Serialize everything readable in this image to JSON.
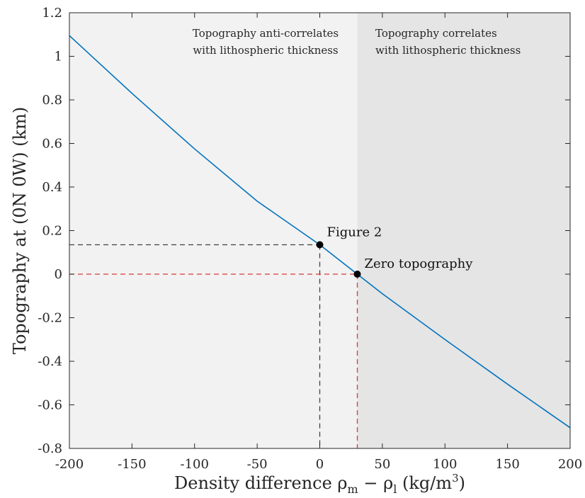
{
  "chart_data": {
    "type": "line",
    "xlabel": "Density difference ρ",
    "xlabel_sub1": "m",
    "xlabel_minus": " − ρ",
    "xlabel_sub2": "l",
    "xlabel_unit": " (kg/m",
    "xlabel_sup": "3",
    "xlabel_close": ")",
    "ylabel": "Topography at (0N 0W) (km)",
    "xlim": [
      -200,
      200
    ],
    "ylim": [
      -0.8,
      1.2
    ],
    "xticks": [
      -200,
      -150,
      -100,
      -50,
      0,
      50,
      100,
      150,
      200
    ],
    "yticks": [
      -0.8,
      -0.6,
      -0.4,
      -0.2,
      0,
      0.2,
      0.4,
      0.6,
      0.8,
      1,
      1.2
    ],
    "xtick_labels": [
      "-200",
      "-150",
      "-100",
      "-50",
      "0",
      "50",
      "100",
      "150",
      "200"
    ],
    "ytick_labels": [
      "-0.8",
      "-0.6",
      "-0.4",
      "-0.2",
      "0",
      "0.2",
      "0.4",
      "0.6",
      "0.8",
      "1",
      "1.2"
    ],
    "grid": false,
    "series": [
      {
        "color": "#0072BD",
        "x": [
          -200,
          -150,
          -100,
          -50,
          0,
          30,
          50,
          100,
          150,
          200
        ],
        "y": [
          1.095,
          0.83,
          0.575,
          0.335,
          0.135,
          0.0,
          -0.09,
          -0.3,
          -0.505,
          -0.705
        ]
      }
    ],
    "regions": [
      {
        "x0": -200,
        "x1": 30,
        "color": "#f2f2f2",
        "label_line1": "Topography anti-correlates",
        "label_line2": "with lithospheric thickness"
      },
      {
        "x0": 30,
        "x1": 200,
        "color": "#e5e5e5",
        "label_line1": "Topography correlates",
        "label_line2": "with lithospheric thickness"
      }
    ],
    "points": [
      {
        "x": 0,
        "y": 0.135,
        "label": "Figure 2",
        "guide_color": "#404040"
      },
      {
        "x": 30,
        "y": 0.0,
        "label": "Zero topography",
        "guide_color": "#d93a3a"
      }
    ]
  }
}
